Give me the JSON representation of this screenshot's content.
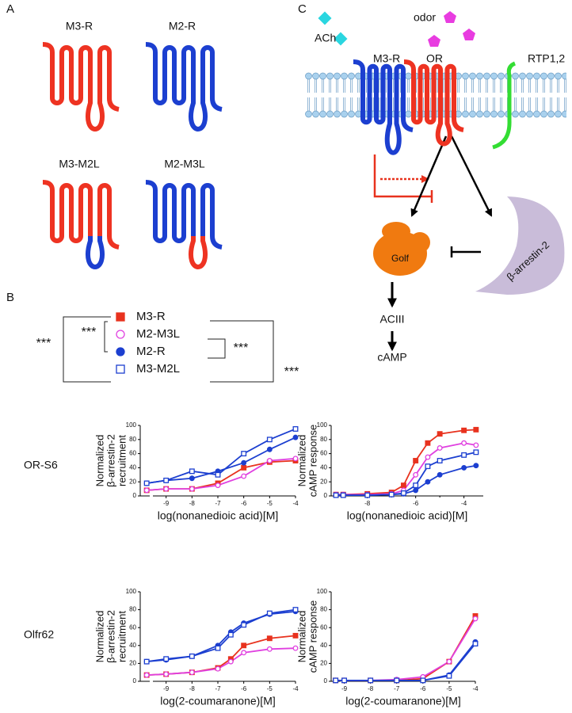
{
  "panel_labels": [
    "A",
    "B",
    "C"
  ],
  "receptors": [
    "M3-R",
    "M2-R",
    "M3-M2L",
    "M2-M3L"
  ],
  "legend": [
    {
      "name": "M3-R",
      "color": "#e8321e",
      "marker": "square",
      "filled": true
    },
    {
      "name": "M2-M3L",
      "color": "#e040e0",
      "marker": "circle",
      "filled": false
    },
    {
      "name": "M2-R",
      "color": "#1c3fd0",
      "marker": "circle",
      "filled": true
    },
    {
      "name": "M3-M2L",
      "color": "#1c3fd0",
      "marker": "square",
      "filled": false
    }
  ],
  "significance": [
    "***",
    "***",
    "***",
    "***"
  ],
  "row_labels": [
    "OR-S6",
    "Olfr62"
  ],
  "pathway": {
    "ach": "ACh",
    "odor": "odor",
    "m3r": "M3-R",
    "or": "OR",
    "rtp": "RTP1,2",
    "golf": "Golf",
    "arrestin": "β-arrestin-2",
    "aciii": "ACIII",
    "camp": "cAMP"
  },
  "chart_data": [
    {
      "type": "line",
      "ylabel": [
        "Normalized",
        "β-arrestin-2",
        "recruitment"
      ],
      "xlabel": "log(nonanedioic acid)[M]",
      "xlim": [
        -10,
        -4
      ],
      "ylim": [
        0,
        100
      ],
      "xticks": [
        -9,
        -8,
        -7,
        -6,
        -5,
        -4
      ],
      "yticks": [
        0,
        20,
        40,
        60,
        80,
        100
      ],
      "x": [
        -9.75,
        -9,
        -8,
        -7,
        -6,
        -5,
        -4
      ],
      "series": [
        {
          "values": [
            8,
            10,
            10,
            18,
            40,
            48,
            50
          ]
        },
        {
          "values": [
            8,
            10,
            10,
            15,
            28,
            50,
            53
          ]
        },
        {
          "values": [
            18,
            22,
            25,
            35,
            47,
            66,
            83
          ]
        },
        {
          "values": [
            18,
            22,
            35,
            30,
            60,
            80,
            95
          ]
        }
      ]
    },
    {
      "type": "line",
      "ylabel": [
        "Normalized",
        "cAMP response"
      ],
      "xlabel": "log(nonanedioic acid)[M]",
      "xlim": [
        -9.5,
        -3.2
      ],
      "ylim": [
        0,
        100
      ],
      "xticks": [
        -8,
        -6,
        -4
      ],
      "xminorticks": [
        -9,
        -7,
        -5
      ],
      "yticks": [
        0,
        20,
        40,
        60,
        80,
        100
      ],
      "x": [
        -9.3,
        -9,
        -8,
        -7,
        -6.5,
        -6,
        -5.5,
        -5,
        -4,
        -3.5
      ],
      "series": [
        {
          "values": [
            2,
            2,
            3,
            5,
            15,
            50,
            75,
            88,
            93,
            94
          ]
        },
        {
          "values": [
            2,
            2,
            2,
            3,
            8,
            30,
            55,
            68,
            75,
            72
          ]
        },
        {
          "values": [
            1,
            1,
            1,
            2,
            3,
            8,
            20,
            30,
            40,
            43
          ]
        },
        {
          "values": [
            1,
            1,
            1,
            2,
            4,
            15,
            42,
            50,
            58,
            62
          ]
        }
      ]
    },
    {
      "type": "line",
      "ylabel": [
        "Normalized",
        "β-arrestin-2",
        "recruitment"
      ],
      "xlabel": "log(2-coumaranone)[M]",
      "xlim": [
        -10,
        -4
      ],
      "ylim": [
        0,
        100
      ],
      "xticks": [
        -9,
        -8,
        -7,
        -6,
        -5,
        -4
      ],
      "yticks": [
        0,
        20,
        40,
        60,
        80,
        100
      ],
      "x": [
        -9.75,
        -9,
        -8,
        -7,
        -6.5,
        -6,
        -5,
        -4
      ],
      "series": [
        {
          "values": [
            7,
            8,
            10,
            15,
            25,
            40,
            48,
            51
          ]
        },
        {
          "values": [
            7,
            8,
            10,
            14,
            22,
            32,
            36,
            37
          ]
        },
        {
          "values": [
            22,
            24,
            28,
            40,
            55,
            65,
            75,
            78
          ]
        },
        {
          "values": [
            22,
            25,
            28,
            37,
            52,
            63,
            76,
            80
          ]
        }
      ]
    },
    {
      "type": "line",
      "ylabel": [
        "Normalized",
        "cAMP response"
      ],
      "xlabel": "log(2-coumaranone)[M]",
      "xlim": [
        -9.5,
        -4
      ],
      "ylim": [
        0,
        100
      ],
      "xticks": [
        -9,
        -8,
        -7,
        -6,
        -5,
        -4
      ],
      "yticks": [
        0,
        20,
        40,
        60,
        80,
        100
      ],
      "x": [
        -9.33,
        -9,
        -8,
        -7,
        -6,
        -5,
        -4
      ],
      "series": [
        {
          "values": [
            1,
            1,
            1,
            1,
            3,
            22,
            73
          ]
        },
        {
          "values": [
            1,
            1,
            1,
            2,
            5,
            22,
            70
          ]
        },
        {
          "values": [
            1,
            1,
            1,
            1,
            1,
            7,
            44
          ]
        },
        {
          "values": [
            1,
            1,
            1,
            1,
            1,
            6,
            42
          ]
        }
      ]
    }
  ]
}
